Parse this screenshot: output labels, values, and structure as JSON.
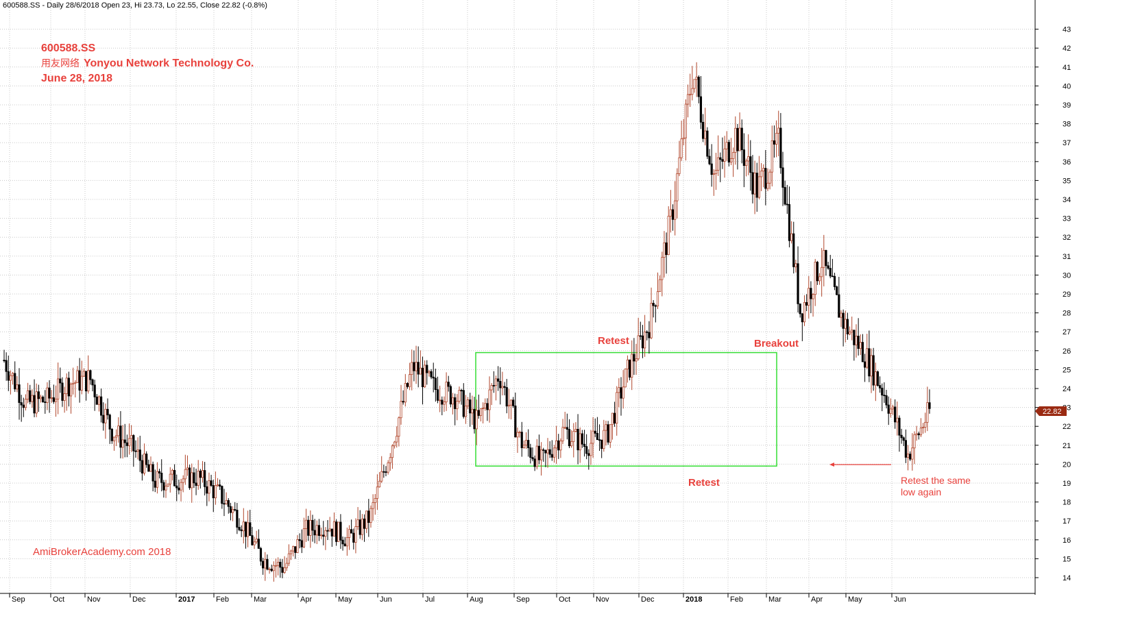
{
  "header": {
    "text": "600588.SS - Daily 28/6/2018 Open 23, Hi 23.73, Lo 22.55, Close 22.82 (-0.8%)"
  },
  "title_block": {
    "ticker": "600588.SS",
    "company_cn": "用友网络",
    "company_en": "Yonyou Network Technology Co.",
    "date": "June 28, 2018"
  },
  "watermark": "AmiBrokerAcademy.com  2018",
  "annotations": {
    "retest_top": "Retest",
    "breakout": "Breakout",
    "retest_bottom": "Retest",
    "retest_note_line1": "Retest the same",
    "retest_note_line2": "low again"
  },
  "last_price_label": "22.82",
  "colors": {
    "up": "#b0452a",
    "down": "#000000",
    "grid": "#c8c8c8",
    "annotation": "#e8413c",
    "box": "#33dd33",
    "price_tag": "#9a2a12"
  },
  "chart_data": {
    "type": "candlestick",
    "ylim": [
      13.5,
      44
    ],
    "y_ticks": [
      14,
      15,
      16,
      17,
      18,
      19,
      20,
      21,
      22,
      23,
      24,
      25,
      26,
      27,
      28,
      29,
      30,
      31,
      32,
      33,
      34,
      35,
      36,
      37,
      38,
      39,
      40,
      41,
      42,
      43
    ],
    "x_labels": [
      "Sep",
      "Oct",
      "Nov",
      "Dec",
      "2017",
      "Feb",
      "Mar",
      "Apr",
      "May",
      "Jun",
      "Jul",
      "Aug",
      "Sep",
      "Oct",
      "Nov",
      "Dec",
      "2018",
      "Feb",
      "Mar",
      "Apr",
      "May",
      "Jun"
    ],
    "grid": true,
    "consolidation_box": {
      "from": "Aug",
      "to": "Feb",
      "low": 19.9,
      "high": 25.9
    },
    "retest_arrow_level": 20.0,
    "last_close": 22.82,
    "price_path": [
      [
        "start",
        25.5
      ],
      [
        "Sep",
        23.2
      ],
      [
        "Oct",
        23.4
      ],
      [
        "Nov",
        24.3
      ],
      [
        "Dec",
        24.5
      ],
      [
        "Dec-late",
        21.8
      ],
      [
        "2017",
        20.8
      ],
      [
        "2017-mid",
        19.1
      ],
      [
        "Feb",
        19.2
      ],
      [
        "Mar",
        19.3
      ],
      [
        "Apr",
        18.4
      ],
      [
        "May",
        17.0
      ],
      [
        "May-late",
        15.0
      ],
      [
        "Jun",
        14.5
      ],
      [
        "Jun-mid",
        16.5
      ],
      [
        "Jul",
        16.8
      ],
      [
        "Jul-mid",
        16.0
      ],
      [
        "Aug",
        17.2
      ],
      [
        "Aug-mid",
        21.0
      ],
      [
        "Sep",
        25.2
      ],
      [
        "Sep-mid",
        24.0
      ],
      [
        "Oct",
        23.6
      ],
      [
        "Oct-mid",
        22.2
      ],
      [
        "Nov",
        24.8
      ],
      [
        "Nov-mid",
        21.2
      ],
      [
        "Dec",
        20.1
      ],
      [
        "Dec-mid",
        21.8
      ],
      [
        "2018",
        21.0
      ],
      [
        "2018-mid",
        21.5
      ],
      [
        "Feb",
        25.0
      ],
      [
        "Feb-gap",
        27.5
      ],
      [
        "Feb-late",
        33.0
      ],
      [
        "Mar",
        40.8
      ],
      [
        "Mar-mid",
        35.2
      ],
      [
        "Apr",
        37.5
      ],
      [
        "Apr-mid",
        34.5
      ],
      [
        "Apr-late",
        37.0
      ],
      [
        "May",
        28.0
      ],
      [
        "May-early",
        30.8
      ],
      [
        "May-mid",
        27.5
      ],
      [
        "Jun",
        25.8
      ],
      [
        "Jun-mid",
        23.5
      ],
      [
        "Jun-low",
        20.5
      ],
      [
        "end",
        22.82
      ]
    ]
  }
}
